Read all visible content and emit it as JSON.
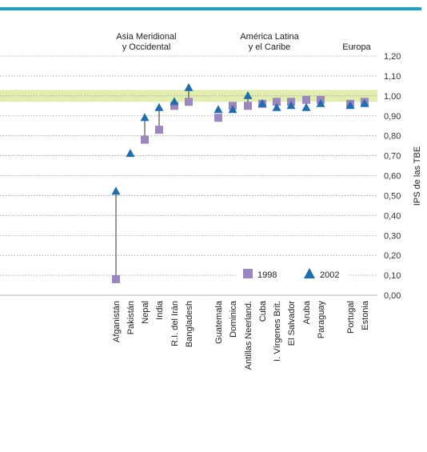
{
  "chart_data": {
    "type": "scatter",
    "ylabel": "IPS de las TBE",
    "ylim": [
      0,
      1.2
    ],
    "yticks": [
      "0,00",
      "0,10",
      "0,20",
      "0,30",
      "0,40",
      "0,50",
      "0,60",
      "0,70",
      "0,80",
      "0,90",
      "1,00",
      "1,10",
      "1,20"
    ],
    "parity_band": [
      0.97,
      1.03
    ],
    "grid": true,
    "legend_position": "bottom-right",
    "groups": [
      {
        "label_lines": [
          "Asia Meridional",
          "y Occidental"
        ]
      },
      {
        "label_lines": [
          "América Latina",
          "y el Caribe"
        ]
      },
      {
        "label_lines": [
          "Europa"
        ]
      }
    ],
    "categories": [
      "Afganistán",
      "Pakistán",
      "Nepal",
      "India",
      "R.I. del Irán",
      "Bangladesh",
      "Guatemala",
      "Dominica",
      "Antillas Neerland.",
      "Cuba",
      "I. Vírgenes Brit.",
      "El Salvador",
      "Aruba",
      "Paraguay",
      "Portugal",
      "Estonia"
    ],
    "series": [
      {
        "name": "1998",
        "color": "#9b86c0",
        "marker": "square",
        "values": [
          0.08,
          null,
          0.78,
          0.83,
          0.95,
          0.97,
          0.89,
          0.95,
          0.95,
          0.96,
          0.97,
          0.97,
          0.98,
          0.98,
          0.96,
          0.97
        ]
      },
      {
        "name": "2002",
        "color": "#1f6db1",
        "marker": "triangle",
        "values": [
          0.52,
          0.71,
          0.89,
          0.94,
          0.97,
          1.04,
          0.93,
          0.93,
          1.0,
          0.96,
          0.94,
          0.95,
          0.94,
          0.96,
          0.95,
          0.96
        ]
      }
    ],
    "colors": {
      "top_rule": "#1aa3c8",
      "band": "#e2edb0",
      "grid": "#9a9a9a",
      "connector": "#333333"
    }
  }
}
